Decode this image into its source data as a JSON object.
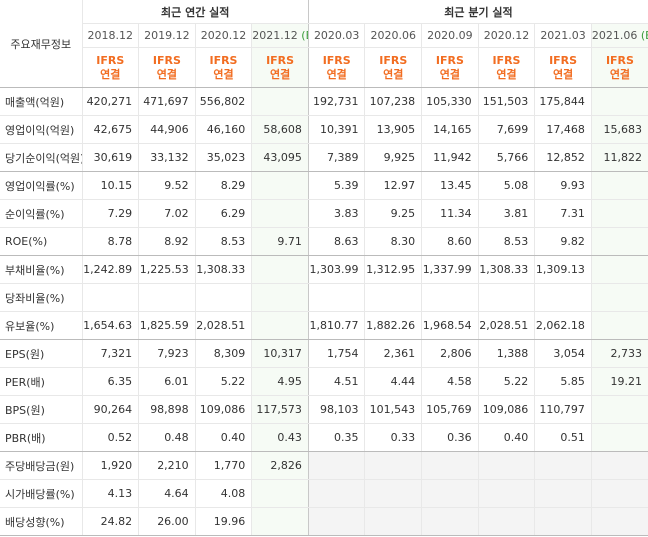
{
  "header": {
    "corner": "주요재무정보",
    "groups": [
      {
        "title": "최근 연간 실적",
        "span": 4
      },
      {
        "title": "최근 분기 실적",
        "span": 6
      }
    ],
    "columns": [
      {
        "date": "2018.12",
        "accounting": "IFRS",
        "scope": "연결"
      },
      {
        "date": "2019.12",
        "accounting": "IFRS",
        "scope": "연결"
      },
      {
        "date": "2020.12",
        "accounting": "IFRS",
        "scope": "연결"
      },
      {
        "date": "2021.12",
        "estimate": "(E)",
        "accounting": "IFRS",
        "scope": "연결"
      },
      {
        "date": "2020.03",
        "accounting": "IFRS",
        "scope": "연결"
      },
      {
        "date": "2020.06",
        "accounting": "IFRS",
        "scope": "연결"
      },
      {
        "date": "2020.09",
        "accounting": "IFRS",
        "scope": "연결"
      },
      {
        "date": "2020.12",
        "accounting": "IFRS",
        "scope": "연결"
      },
      {
        "date": "2021.03",
        "accounting": "IFRS",
        "scope": "연결"
      },
      {
        "date": "2021.06",
        "estimate": "(E)",
        "accounting": "IFRS",
        "scope": "연결"
      }
    ]
  },
  "sections": [
    {
      "rows": [
        {
          "label": "매출액(억원)",
          "cells": [
            "420,271",
            "471,697",
            "556,802",
            null,
            "192,731",
            "107,238",
            "105,330",
            "151,503",
            "175,844",
            null
          ]
        },
        {
          "label": "영업이익(억원)",
          "cells": [
            "42,675",
            "44,906",
            "46,160",
            "58,608",
            "10,391",
            "13,905",
            "14,165",
            "7,699",
            "17,468",
            "15,683"
          ]
        },
        {
          "label": "당기순이익(억원)",
          "cells": [
            "30,619",
            "33,132",
            "35,023",
            "43,095",
            "7,389",
            "9,925",
            "11,942",
            "5,766",
            "12,852",
            "11,822"
          ]
        }
      ]
    },
    {
      "rows": [
        {
          "label": "영업이익률(%)",
          "cells": [
            "10.15",
            "9.52",
            "8.29",
            null,
            "5.39",
            "12.97",
            "13.45",
            "5.08",
            "9.93",
            null
          ]
        },
        {
          "label": "순이익률(%)",
          "cells": [
            "7.29",
            "7.02",
            "6.29",
            null,
            "3.83",
            "9.25",
            "11.34",
            "3.81",
            "7.31",
            null
          ]
        },
        {
          "label": "ROE(%)",
          "cells": [
            "8.78",
            "8.92",
            "8.53",
            "9.71",
            "8.63",
            "8.30",
            "8.60",
            "8.53",
            "9.82",
            null
          ]
        }
      ]
    },
    {
      "rows": [
        {
          "label": "부채비율(%)",
          "cells": [
            "1,242.89",
            "1,225.53",
            "1,308.33",
            null,
            "1,303.99",
            "1,312.95",
            "1,337.99",
            "1,308.33",
            "1,309.13",
            null
          ]
        },
        {
          "label": "당좌비율(%)",
          "cells": [
            null,
            null,
            null,
            null,
            null,
            null,
            null,
            null,
            null,
            null
          ]
        },
        {
          "label": "유보율(%)",
          "cells": [
            "1,654.63",
            "1,825.59",
            "2,028.51",
            null,
            "1,810.77",
            "1,882.26",
            "1,968.54",
            "2,028.51",
            "2,062.18",
            null
          ]
        }
      ]
    },
    {
      "rows": [
        {
          "label": "EPS(원)",
          "cells": [
            "7,321",
            "7,923",
            "8,309",
            "10,317",
            "1,754",
            "2,361",
            "2,806",
            "1,388",
            "3,054",
            "2,733"
          ]
        },
        {
          "label": "PER(배)",
          "cells": [
            "6.35",
            "6.01",
            "5.22",
            "4.95",
            "4.51",
            "4.44",
            "4.58",
            "5.22",
            "5.85",
            "19.21"
          ]
        },
        {
          "label": "BPS(원)",
          "cells": [
            "90,264",
            "98,898",
            "109,086",
            "117,573",
            "98,103",
            "101,543",
            "105,769",
            "109,086",
            "110,797",
            null
          ]
        },
        {
          "label": "PBR(배)",
          "cells": [
            "0.52",
            "0.48",
            "0.40",
            "0.43",
            "0.35",
            "0.33",
            "0.36",
            "0.40",
            "0.51",
            null
          ]
        }
      ]
    },
    {
      "rows": [
        {
          "label": "주당배당금(원)",
          "cells": [
            "1,920",
            "2,210",
            "1,770",
            "2,826",
            null,
            null,
            null,
            null,
            null,
            null
          ]
        },
        {
          "label": "시가배당률(%)",
          "cells": [
            "4.13",
            "4.64",
            "4.08",
            null,
            null,
            null,
            null,
            null,
            null,
            null
          ]
        },
        {
          "label": "배당성향(%)",
          "cells": [
            "24.82",
            "26.00",
            "19.96",
            null,
            null,
            null,
            null,
            null,
            null,
            null
          ]
        }
      ]
    }
  ]
}
